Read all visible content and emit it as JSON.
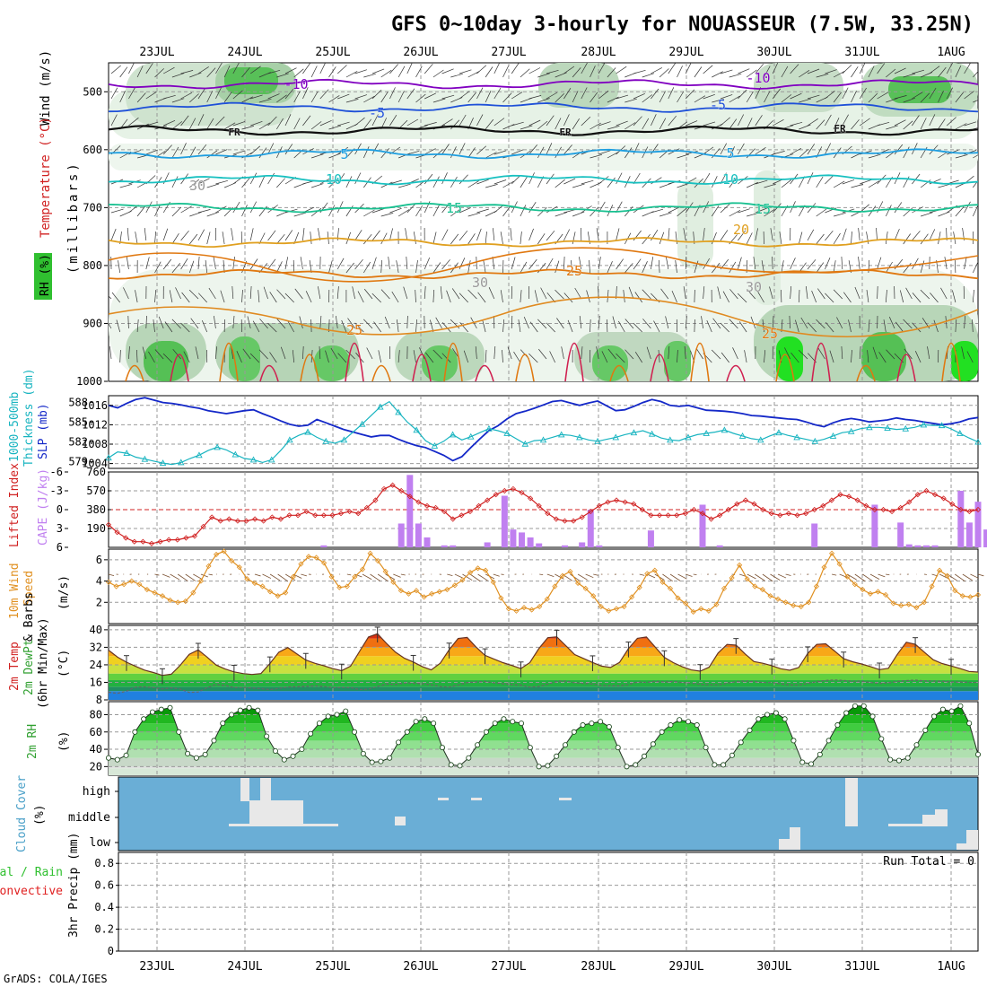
{
  "title": "GFS 0~10day 3-hourly for NOUASSEUR (7.5W, 33.25N)",
  "credit": "GrADS: COLA/IGES",
  "dates": [
    "23JUL",
    "24JUL",
    "25JUL",
    "26JUL",
    "27JUL",
    "28JUL",
    "29JUL",
    "30JUL",
    "31JUL",
    "1AUG"
  ],
  "run_total": "Run Total = 0",
  "panels": {
    "upper": {
      "ylabel_units": "(millibars)",
      "label_wind": "Wind (m/s)",
      "label_temp": "Temperature (°C)",
      "label_rh": "RH (%)",
      "ticks": [
        "500",
        "600",
        "700",
        "800",
        "900",
        "1000"
      ],
      "contour_labels": [
        "-10",
        "-5",
        "FR",
        "-5",
        "5",
        "10",
        "15",
        "20",
        "25",
        "30"
      ]
    },
    "thick": {
      "label_a": "1000-500mb",
      "label_b": "Thickness (dm)",
      "label_c": "SLP (mb)",
      "ticks_left": [
        "588",
        "585",
        "582",
        "579"
      ],
      "ticks_right": [
        "1016",
        "1012",
        "1008",
        "1004"
      ]
    },
    "li": {
      "label_a": "Lifted Index",
      "label_b": "CAPE (J/kg)",
      "ticks_left": [
        "-6",
        "-3",
        "0",
        "3",
        "6"
      ],
      "ticks_right": [
        "760",
        "570",
        "380",
        "190"
      ]
    },
    "wind10": {
      "label_a": "10m Wind",
      "label_b": "Speed",
      "label_c": "& Barbs",
      "label_d": "(m/s)",
      "ticks": [
        "6",
        "4",
        "2"
      ]
    },
    "temp2m": {
      "label_a": "2m Temp",
      "label_b": "2m DewPt",
      "label_c": "(6hr Min/Max)",
      "label_d": "(°C)",
      "ticks": [
        "40",
        "32",
        "24",
        "16",
        "8"
      ]
    },
    "rh2m": {
      "label_a": "2m RH",
      "label_b": "(%)",
      "ticks": [
        "80",
        "60",
        "40",
        "20"
      ]
    },
    "cloud": {
      "label_a": "Cloud Cover",
      "label_b": "(%)",
      "levels": [
        "high",
        "middle",
        "low"
      ]
    },
    "precip": {
      "label_a": "3hr Precip (mm)",
      "label_b": "Total / Rain",
      "label_c": "Convective",
      "ticks": [
        "0.8",
        "0.6",
        "0.4",
        "0.2",
        "0"
      ]
    }
  },
  "colors": {
    "slp": "#1428c8",
    "thickness": "#18b4c0",
    "lifted_index": "#d02020",
    "cape": "#c080f0",
    "wind_speed": "#e09020",
    "rh_green": "#30c030",
    "cloud_blue": "#6aaed6",
    "temp_t10": "#8000c0",
    "temp_t5": "#1e50d8",
    "temp_fr": "#101010",
    "temp_p5": "#1e9ee0",
    "temp_p10": "#18c0c0",
    "temp_p15": "#18c090",
    "temp_p20": "#e0a020",
    "temp_p25": "#e07810"
  },
  "chart_data": [
    {
      "panel": "sounding",
      "type": "heatmap",
      "y_axis": "pressure (millibars)",
      "ylim": [
        1000,
        450
      ],
      "isotherms": [
        {
          "label": "-10",
          "pressure": 487
        },
        {
          "label": "-5",
          "pressure": 527
        },
        {
          "label": "FR",
          "pressure": 567
        },
        {
          "label": "5",
          "pressure": 607
        },
        {
          "label": "10",
          "pressure": 652
        },
        {
          "label": "15",
          "pressure": 700
        },
        {
          "label": "20",
          "pressure": 760
        },
        {
          "label": "25",
          "pressure": 815
        }
      ]
    },
    {
      "panel": "thickness_slp",
      "type": "line",
      "series": [
        {
          "name": "SLP (mb)",
          "values": [
            1016.0,
            1015.5,
            1016.4,
            1017.2,
            1017.6,
            1017.1,
            1016.6,
            1016.4,
            1016.1,
            1015.7,
            1015.4,
            1014.9,
            1014.6,
            1014.3,
            1014.6,
            1014.9,
            1015.1,
            1014.3,
            1013.6,
            1012.8,
            1012.1,
            1011.7,
            1011.9,
            1013.1,
            1012.4,
            1011.7,
            1011.0,
            1010.5,
            1010.0,
            1009.5,
            1009.8,
            1009.8,
            1009.0,
            1008.3,
            1007.7,
            1007.3,
            1006.5,
            1005.7,
            1004.6,
            1005.4,
            1007.3,
            1009.1,
            1010.8,
            1011.8,
            1013.2,
            1014.3,
            1014.8,
            1015.4,
            1016.1,
            1016.8,
            1017.0,
            1016.5,
            1016.0,
            1016.5,
            1016.9,
            1015.9,
            1014.9,
            1015.1,
            1015.8,
            1016.6,
            1017.2,
            1016.8,
            1016.0,
            1015.8,
            1016.0,
            1015.5,
            1015.0,
            1014.9,
            1014.8,
            1014.6,
            1014.3,
            1013.9,
            1013.8,
            1013.6,
            1013.4,
            1013.2,
            1013.1,
            1012.6,
            1012.0,
            1011.6,
            1012.4,
            1013.0,
            1013.3,
            1013.0,
            1012.6,
            1012.8,
            1013.0,
            1013.4,
            1013.1,
            1012.9,
            1012.6,
            1012.3,
            1012.0,
            1012.2,
            1012.6,
            1013.2,
            1013.5
          ]
        },
        {
          "name": "Thickness (dm)",
          "values": [
            579.6,
            580.5,
            580.3,
            579.7,
            579.4,
            579.1,
            578.8,
            578.6,
            578.9,
            579.5,
            580.0,
            580.7,
            581.2,
            580.8,
            580.1,
            579.5,
            579.3,
            578.9,
            579.3,
            580.7,
            582.3,
            583.0,
            583.5,
            582.7,
            582.1,
            581.8,
            582.3,
            583.5,
            584.7,
            586.0,
            587.3,
            588.1,
            586.5,
            585.0,
            583.8,
            582.2,
            581.4,
            582.1,
            583.1,
            582.3,
            582.8,
            583.4,
            584.0,
            583.7,
            583.3,
            582.5,
            581.7,
            582.2,
            582.3,
            582.7,
            583.1,
            583.0,
            582.7,
            582.3,
            582.1,
            582.4,
            582.7,
            583.1,
            583.4,
            583.7,
            583.2,
            582.6,
            582.3,
            582.2,
            582.7,
            583.1,
            583.3,
            583.5,
            583.8,
            583.3,
            582.9,
            582.5,
            582.3,
            582.9,
            583.4,
            583.0,
            582.7,
            582.4,
            582.1,
            582.4,
            582.9,
            583.4,
            583.6,
            584.0,
            584.2,
            584.2,
            584.1,
            583.9,
            584.0,
            584.2,
            584.6,
            584.5,
            584.5,
            584.0,
            583.3,
            582.6,
            582.0
          ]
        }
      ]
    },
    {
      "panel": "lifted_index_cape",
      "type": "bar",
      "series": [
        {
          "name": "Lifted Index",
          "values": [
            2.4,
            3.6,
            4.5,
            5.1,
            5.1,
            5.4,
            5.1,
            4.8,
            4.8,
            4.5,
            4.2,
            2.7,
            1.2,
            1.8,
            1.5,
            1.8,
            1.8,
            1.5,
            1.8,
            1.2,
            1.5,
            0.9,
            0.9,
            0.3,
            0.9,
            0.9,
            0.9,
            0.6,
            0.3,
            0.6,
            -0.3,
            -1.5,
            -3.3,
            -3.9,
            -3.0,
            -2.1,
            -1.2,
            -0.6,
            -0.3,
            0.3,
            1.5,
            0.9,
            0.3,
            -0.6,
            -1.5,
            -2.4,
            -3.0,
            -3.3,
            -2.7,
            -1.8,
            -0.6,
            0.6,
            1.5,
            1.8,
            1.8,
            1.2,
            0.3,
            -0.6,
            -1.2,
            -1.5,
            -1.2,
            -0.9,
            0.0,
            0.9,
            0.9,
            0.9,
            0.9,
            0.6,
            0.0,
            0.6,
            1.5,
            0.9,
            0.0,
            -0.9,
            -1.5,
            -0.9,
            0.0,
            0.6,
            0.9,
            0.6,
            0.9,
            0.6,
            0.0,
            -0.6,
            -1.5,
            -2.4,
            -2.1,
            -1.5,
            -0.6,
            0.0,
            0.0,
            0.3,
            -0.3,
            -1.2,
            -2.4,
            -3.0,
            -2.4,
            -1.8,
            -0.9,
            0.0,
            0.3,
            0.0
          ]
        },
        {
          "name": "CAPE (J/kg)",
          "indices": [
            25,
            34,
            35,
            36,
            37,
            39,
            40,
            44,
            46,
            47,
            48,
            49,
            50,
            53,
            55,
            56,
            57,
            63,
            69,
            71,
            82,
            89,
            92,
            93,
            94,
            95,
            96,
            99,
            100,
            101,
            102,
            103,
            104,
            105,
            107,
            108
          ],
          "values": [
            20,
            240,
            730,
            240,
            100,
            20,
            20,
            50,
            520,
            180,
            150,
            100,
            40,
            20,
            50,
            380,
            20,
            170,
            430,
            20,
            240,
            430,
            250,
            30,
            20,
            20,
            20,
            570,
            250,
            460,
            180,
            20,
            70,
            20,
            70,
            40
          ]
        }
      ]
    },
    {
      "panel": "wind_10m",
      "type": "line",
      "series": [
        {
          "name": "Speed",
          "values": [
            3.9,
            3.5,
            3.7,
            4.0,
            3.7,
            3.2,
            2.9,
            2.6,
            2.2,
            2.0,
            2.1,
            2.9,
            4.0,
            5.4,
            6.5,
            6.8,
            5.9,
            5.3,
            4.2,
            3.8,
            3.5,
            3.0,
            2.6,
            2.9,
            4.4,
            5.6,
            6.3,
            6.2,
            5.7,
            4.4,
            3.4,
            3.5,
            4.4,
            5.1,
            6.6,
            5.9,
            4.9,
            3.9,
            3.1,
            2.8,
            3.1,
            2.5,
            2.8,
            3.0,
            3.2,
            3.6,
            4.1,
            4.8,
            5.2,
            5.0,
            3.9,
            2.4,
            1.4,
            1.2,
            1.5,
            1.3,
            1.6,
            2.3,
            3.5,
            4.5,
            4.9,
            3.8,
            3.3,
            2.6,
            1.6,
            1.2,
            1.4,
            1.6,
            2.5,
            3.4,
            4.7,
            5.0,
            3.9,
            3.3,
            2.4,
            1.9,
            1.1,
            1.4,
            1.2,
            1.8,
            3.3,
            4.3,
            5.5,
            4.2,
            3.5,
            3.2,
            2.6,
            2.3,
            2.0,
            1.7,
            1.6,
            2.0,
            3.5,
            5.3,
            6.6,
            5.6,
            4.4,
            3.7,
            3.2,
            2.8,
            3.0,
            2.7,
            1.9,
            1.7,
            1.8,
            1.5,
            2.0,
            3.5,
            5.0,
            4.5,
            3.1,
            2.6,
            2.5,
            2.7
          ]
        }
      ]
    },
    {
      "panel": "temp_2m",
      "type": "area",
      "series": [
        {
          "name": "2m Temp",
          "values": [
            30.7,
            27.5,
            25.2,
            23.3,
            21.6,
            20.5,
            19.2,
            19.7,
            23.8,
            28.8,
            30.8,
            27.5,
            23.9,
            22.1,
            20.8,
            20.0,
            19.6,
            20.0,
            24.6,
            29.8,
            31.9,
            29.0,
            26.2,
            24.7,
            23.6,
            22.3,
            21.3,
            23.4,
            30.1,
            36.7,
            38.2,
            33.8,
            29.8,
            27.0,
            25.3,
            23.2,
            21.7,
            24.7,
            30.9,
            36.0,
            36.5,
            32.1,
            28.3,
            26.6,
            25.0,
            23.7,
            22.3,
            25.0,
            31.4,
            36.4,
            36.8,
            32.8,
            28.7,
            26.9,
            25.1,
            23.4,
            22.8,
            25.1,
            31.4,
            36.1,
            36.7,
            32.0,
            27.4,
            25.0,
            23.1,
            21.7,
            21.1,
            22.9,
            29.4,
            33.3,
            33.0,
            29.0,
            25.5,
            24.7,
            23.6,
            22.2,
            21.5,
            22.8,
            29.2,
            33.3,
            33.6,
            30.3,
            26.8,
            25.4,
            24.4,
            23.2,
            21.8,
            22.4,
            28.8,
            34.3,
            33.4,
            29.8,
            26.3,
            24.6,
            23.5,
            22.3,
            21.0,
            20.7
          ]
        },
        {
          "name": "2m DewPt",
          "values": [
            11.5,
            11.0,
            12.0,
            13.8,
            14.0,
            13.6,
            13.0,
            13.5,
            12.9,
            11.4,
            11.6,
            13.6,
            15.0,
            14.6,
            13.6,
            13.7,
            13.4,
            13.1,
            12.7,
            13.2,
            13.9,
            14.0,
            14.2,
            14.4,
            14.1,
            13.6,
            13.7,
            13.6,
            12.7,
            12.9,
            14.1,
            15.2,
            15.0,
            15.7,
            15.6,
            15.4,
            14.9,
            14.1,
            13.8,
            14.8,
            15.9,
            16.2,
            16.4,
            15.8,
            15.4,
            15.0,
            14.7,
            13.8,
            14.1,
            15.2,
            16.4,
            16.6,
            15.8,
            15.5,
            15.3,
            14.5,
            14.4,
            14.4,
            15.0,
            16.2,
            16.0,
            16.5,
            16.2,
            16.4,
            15.9,
            15.6,
            15.1,
            14.9,
            14.9,
            15.5,
            16.4,
            16.6,
            16.4,
            15.9,
            15.9,
            15.3,
            14.8,
            14.8,
            15.5,
            16.3,
            16.9,
            17.1,
            16.9,
            16.5,
            16.6,
            15.9,
            15.5,
            15.8,
            16.4,
            16.8,
            17.0,
            16.7,
            16.6,
            16.5,
            16.2,
            16.2,
            16.0,
            15.9
          ]
        }
      ]
    },
    {
      "panel": "rh_2m",
      "type": "area",
      "series": [
        {
          "name": "2m RH",
          "values": [
            30,
            28,
            33,
            60,
            75,
            83,
            86,
            88,
            60,
            35,
            30,
            34,
            50,
            70,
            80,
            85,
            88,
            85,
            55,
            38,
            28,
            32,
            40,
            58,
            70,
            78,
            80,
            84,
            60,
            35,
            25,
            26,
            30,
            48,
            60,
            72,
            75,
            70,
            42,
            22,
            21,
            30,
            45,
            60,
            70,
            75,
            72,
            70,
            42,
            20,
            21,
            32,
            45,
            60,
            68,
            70,
            72,
            66,
            42,
            20,
            22,
            32,
            46,
            60,
            68,
            74,
            72,
            68,
            42,
            22,
            22,
            33,
            48,
            62,
            75,
            80,
            82,
            75,
            50,
            25,
            23,
            34,
            50,
            68,
            82,
            90,
            90,
            78,
            52,
            28,
            27,
            30,
            45,
            62,
            78,
            86,
            84,
            90,
            70,
            34
          ]
        }
      ]
    },
    {
      "panel": "precip_3hr",
      "type": "bar",
      "ylim": [
        0,
        0.9
      ],
      "values": []
    }
  ]
}
